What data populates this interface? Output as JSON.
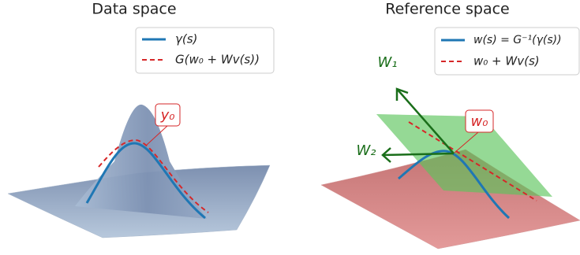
{
  "panels": [
    {
      "title": "Data space",
      "legend": [
        "γ(s)",
        "G(w₀ + Wv(s))"
      ],
      "label": "y₀"
    },
    {
      "title": "Reference space",
      "legend": [
        "w(s) = G⁻¹(γ(s))",
        "w₀ + Wv(s)"
      ],
      "label": "w₀",
      "arrows": [
        "W₁",
        "W₂"
      ]
    }
  ]
}
